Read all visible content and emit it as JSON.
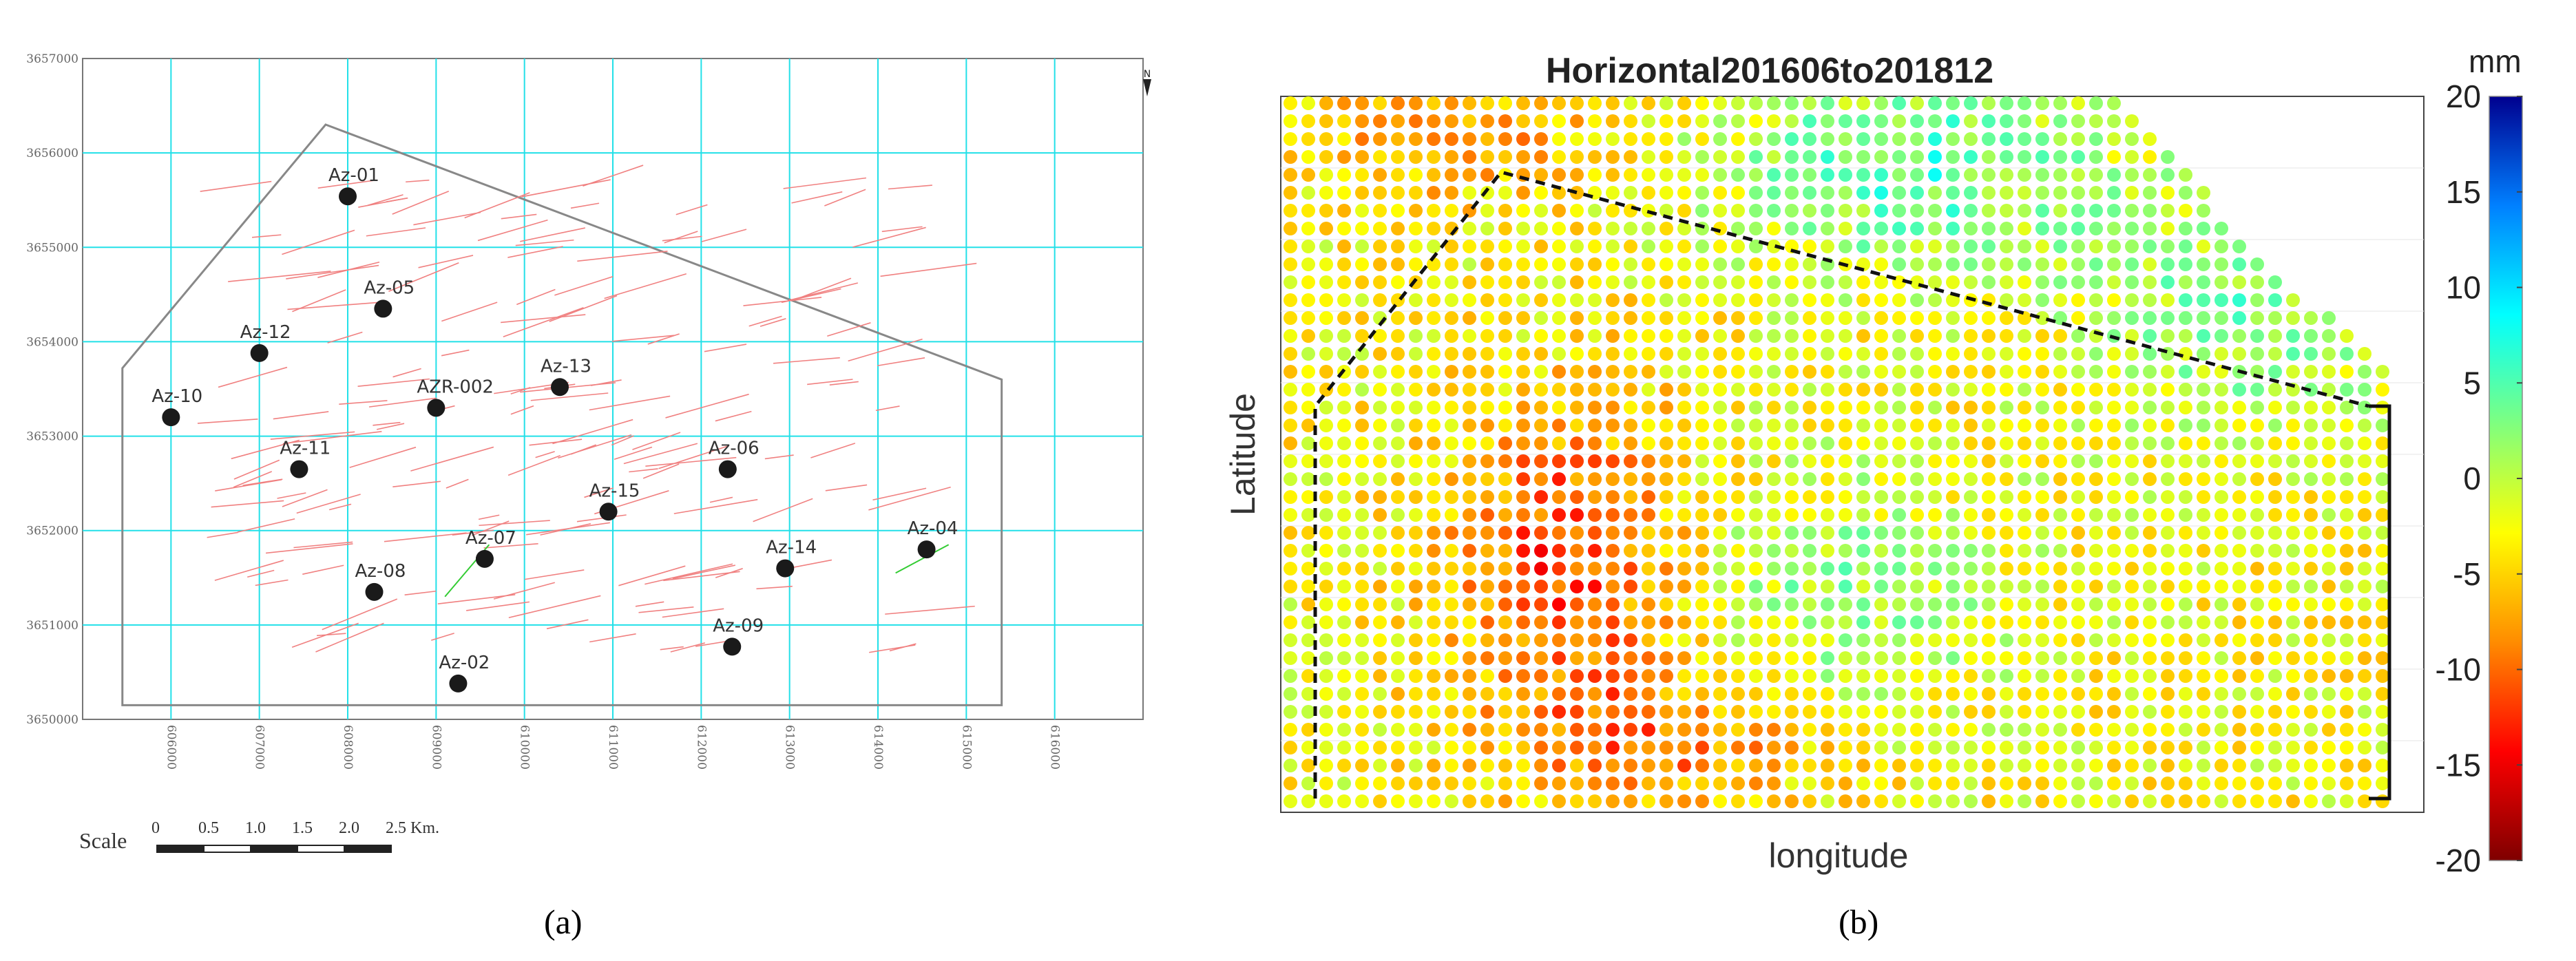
{
  "panel_a": {
    "caption": "(a)",
    "y_ticks": [
      "3657000",
      "3656000",
      "3655000",
      "3654000",
      "3653000",
      "3652000",
      "3651000",
      "3650000"
    ],
    "x_ticks": [
      "606000",
      "607000",
      "608000",
      "609000",
      "610000",
      "611000",
      "612000",
      "613000",
      "614000",
      "615000",
      "616000"
    ],
    "wells": [
      {
        "name": "Az-01",
        "x": 608000,
        "y": 3655540
      },
      {
        "name": "Az-05",
        "x": 608400,
        "y": 3654350
      },
      {
        "name": "Az-12",
        "x": 607000,
        "y": 3653880
      },
      {
        "name": "Az-13",
        "x": 610400,
        "y": 3653520
      },
      {
        "name": "AZR-002",
        "x": 609000,
        "y": 3653300
      },
      {
        "name": "Az-10",
        "x": 606000,
        "y": 3653200
      },
      {
        "name": "Az-11",
        "x": 607450,
        "y": 3652650
      },
      {
        "name": "Az-06",
        "x": 612300,
        "y": 3652650
      },
      {
        "name": "Az-15",
        "x": 610950,
        "y": 3652200
      },
      {
        "name": "Az-07",
        "x": 609550,
        "y": 3651700
      },
      {
        "name": "Az-04",
        "x": 614550,
        "y": 3651800
      },
      {
        "name": "Az-14",
        "x": 612950,
        "y": 3651600
      },
      {
        "name": "Az-08",
        "x": 608300,
        "y": 3651350
      },
      {
        "name": "Az-09",
        "x": 612350,
        "y": 3650770
      },
      {
        "name": "Az-02",
        "x": 609250,
        "y": 3650380
      }
    ],
    "scale": {
      "label": "Scale",
      "ticks": [
        "0",
        "0.5",
        "1.0",
        "1.5",
        "2.0",
        "2.5 Km."
      ]
    },
    "north_symbol": "N"
  },
  "panel_b": {
    "caption": "(b)",
    "chart_data": {
      "type": "heatmap",
      "title": "Horizontal201606to201812",
      "xlabel": "longitude",
      "ylabel": "Latitude",
      "colorbar_unit": "mm",
      "colorbar_range": [
        -20,
        20
      ],
      "colorbar_ticks": [
        "20",
        "15",
        "10",
        "5",
        "0",
        "-5",
        "-10",
        "-15",
        "-20"
      ],
      "colormap": [
        "#7f0000",
        "#ff0000",
        "#ff8c00",
        "#ffff00",
        "#7fff7f",
        "#00ffff",
        "#0080ff",
        "#00008f"
      ]
    }
  }
}
